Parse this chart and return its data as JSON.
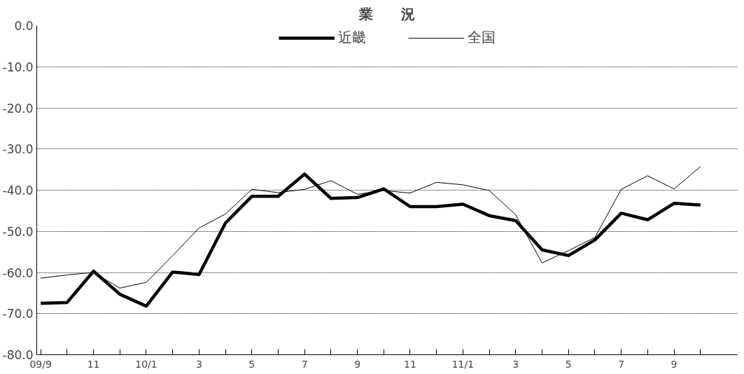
{
  "chart_data": {
    "type": "line",
    "title": "業　　況",
    "categories": [
      "09/9",
      null,
      "11",
      null,
      "10/1",
      null,
      "3",
      null,
      "5",
      null,
      "7",
      null,
      "9",
      null,
      "11",
      null,
      "11/1",
      null,
      "3",
      null,
      "5",
      null,
      "7",
      null,
      "9",
      null
    ],
    "series": [
      {
        "name": "近畿",
        "color": "#000000",
        "values": [
          -67.5,
          -67.3,
          -59.7,
          -65.3,
          -68.2,
          -59.9,
          -60.5,
          -48.0,
          -41.5,
          -41.5,
          -36.1,
          -42.0,
          -41.8,
          -39.7,
          -44.0,
          -44.0,
          -43.4,
          -46.2,
          -47.4,
          -54.5,
          -55.9,
          -52.1,
          -45.6,
          -47.2,
          -43.2,
          -43.6
        ]
      },
      {
        "name": "全国",
        "color": "#000000",
        "values": [
          -61.4,
          -60.6,
          -60.0,
          -63.8,
          -62.4,
          -55.9,
          -49.2,
          -45.8,
          -39.8,
          -40.6,
          -39.8,
          -37.7,
          -41.0,
          -40.1,
          -40.7,
          -38.1,
          -38.7,
          -40.1,
          -46.0,
          -57.7,
          -54.7,
          -51.5,
          -39.8,
          -36.5,
          -39.7,
          -34.3
        ]
      }
    ],
    "ylim": [
      -80,
      0
    ],
    "yticks": [
      {
        "value": 0,
        "label": "0.0"
      },
      {
        "value": -10,
        "label": "-10.0"
      },
      {
        "value": -20,
        "label": "-20.0"
      },
      {
        "value": -30,
        "label": "-30.0"
      },
      {
        "value": -40,
        "label": "-40.0"
      },
      {
        "value": -50,
        "label": "-50.0"
      },
      {
        "value": -60,
        "label": "-60.0"
      },
      {
        "value": -70,
        "label": "-70.0"
      },
      {
        "value": -80,
        "label": "-80.0"
      }
    ],
    "grid": "y",
    "legend": "top",
    "marker": "none",
    "line_style": "solid"
  }
}
